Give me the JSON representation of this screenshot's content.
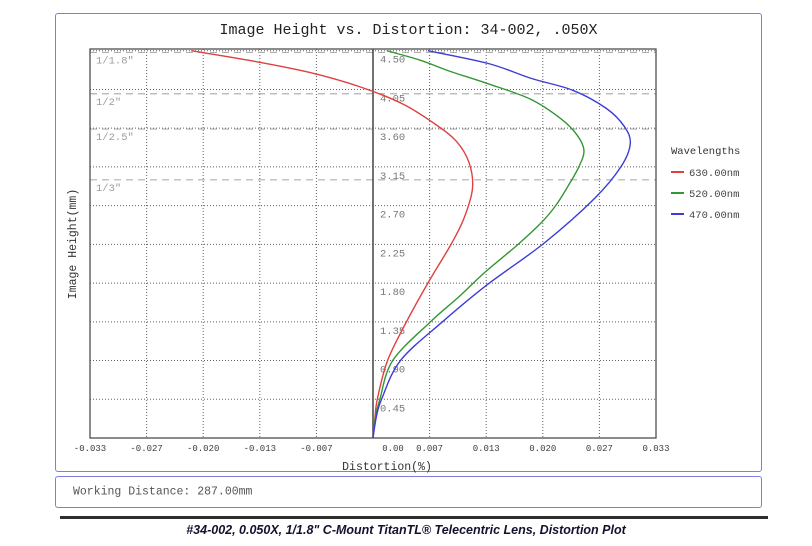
{
  "title": "Image Height vs. Distortion: 34-002, .050X",
  "working_distance": "Working Distance: 287.00mm",
  "caption": "#34-002, 0.050X, 1/1.8\" C-Mount TitanTL® Telecentric Lens, Distortion Plot",
  "colors": {
    "frame": "#7e7ee0",
    "divider": "#2e2e2e",
    "grid_dotted": "#606060",
    "axis": "#4f4f4f",
    "sensor_dash": "#b0b0b0",
    "red": "#df4040",
    "green": "#349634",
    "blue": "#3c3cd8"
  },
  "chart_data": {
    "type": "line",
    "title": "Image Height vs. Distortion: 34-002, .050X",
    "xlabel": "Distortion(%)",
    "ylabel": "Image Height(mm)",
    "xlim": [
      -0.033,
      0.033
    ],
    "ylim": [
      0,
      4.52
    ],
    "grid": "dotted",
    "x_tick_labels": [
      "-0.033",
      "-0.027",
      "-0.020",
      "-0.013",
      "-0.007",
      "0.00",
      "0.007",
      "0.013",
      "0.020",
      "0.027",
      "0.033"
    ],
    "y_tick_labels": [
      "0.45",
      "0.90",
      "1.35",
      "1.80",
      "2.25",
      "2.70",
      "3.15",
      "3.60",
      "4.05",
      "4.50"
    ],
    "y_tick_values": [
      0.45,
      0.9,
      1.35,
      1.8,
      2.25,
      2.7,
      3.15,
      3.6,
      4.05,
      4.5
    ],
    "legend_title": "Wavelengths",
    "legend_position": "right-outside",
    "sensor_lines": [
      {
        "label": "1/1.8\"",
        "height_mm": 4.48
      },
      {
        "label": "1/2\"",
        "height_mm": 4.0
      },
      {
        "label": "1/2.5\"",
        "height_mm": 3.59
      },
      {
        "label": "1/3\"",
        "height_mm": 3.0
      }
    ],
    "series": [
      {
        "name": "630.00nm",
        "color": "#df4040",
        "points": [
          [
            0.0,
            0.0
          ],
          [
            0.0002,
            0.2
          ],
          [
            0.0005,
            0.45
          ],
          [
            0.0017,
            0.9
          ],
          [
            0.0039,
            1.35
          ],
          [
            0.0064,
            1.8
          ],
          [
            0.0091,
            2.25
          ],
          [
            0.0106,
            2.55
          ],
          [
            0.0116,
            2.9
          ],
          [
            0.0112,
            3.2
          ],
          [
            0.0097,
            3.45
          ],
          [
            0.0072,
            3.65
          ],
          [
            0.0035,
            3.88
          ],
          [
            -0.0015,
            4.08
          ],
          [
            -0.0075,
            4.25
          ],
          [
            -0.014,
            4.38
          ],
          [
            -0.0212,
            4.5
          ]
        ]
      },
      {
        "name": "520.00nm",
        "color": "#349634",
        "points": [
          [
            0.0,
            0.0
          ],
          [
            0.0003,
            0.25
          ],
          [
            0.0008,
            0.45
          ],
          [
            0.0023,
            0.9
          ],
          [
            0.0067,
            1.35
          ],
          [
            0.01,
            1.64
          ],
          [
            0.0131,
            1.93
          ],
          [
            0.0168,
            2.24
          ],
          [
            0.0197,
            2.51
          ],
          [
            0.0213,
            2.7
          ],
          [
            0.0227,
            2.92
          ],
          [
            0.024,
            3.15
          ],
          [
            0.0246,
            3.34
          ],
          [
            0.0238,
            3.52
          ],
          [
            0.0219,
            3.71
          ],
          [
            0.0183,
            3.94
          ],
          [
            0.0133,
            4.12
          ],
          [
            0.009,
            4.26
          ],
          [
            0.0055,
            4.39
          ],
          [
            0.0016,
            4.5
          ]
        ]
      },
      {
        "name": "470.00nm",
        "color": "#3c3cd8",
        "points": [
          [
            0.0,
            0.0
          ],
          [
            0.0004,
            0.25
          ],
          [
            0.001,
            0.45
          ],
          [
            0.0032,
            0.9
          ],
          [
            0.0081,
            1.35
          ],
          [
            0.0133,
            1.78
          ],
          [
            0.0199,
            2.26
          ],
          [
            0.0258,
            2.78
          ],
          [
            0.0289,
            3.15
          ],
          [
            0.03,
            3.42
          ],
          [
            0.0293,
            3.62
          ],
          [
            0.0272,
            3.83
          ],
          [
            0.0233,
            4.04
          ],
          [
            0.0184,
            4.18
          ],
          [
            0.0135,
            4.35
          ],
          [
            0.0064,
            4.5
          ]
        ]
      }
    ]
  }
}
